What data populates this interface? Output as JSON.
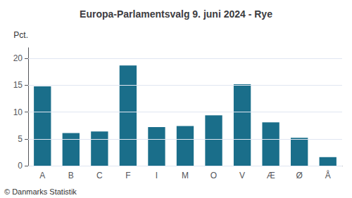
{
  "chart_data": {
    "type": "bar",
    "title": "Europa-Parlamentsvalg 9. juni 2024 - Rye",
    "categories": [
      "A",
      "B",
      "C",
      "F",
      "I",
      "M",
      "O",
      "V",
      "Æ",
      "Ø",
      "Å"
    ],
    "values": [
      14.8,
      6.1,
      6.4,
      18.7,
      7.2,
      7.4,
      9.4,
      15.2,
      8.1,
      5.2,
      1.6
    ],
    "color": "#1a6e8a",
    "ylabel": "Pct.",
    "ylim": [
      0,
      22
    ],
    "yticks": [
      0,
      5,
      10,
      15,
      20
    ],
    "grid": true,
    "footer": "© Danmarks Statistik"
  }
}
